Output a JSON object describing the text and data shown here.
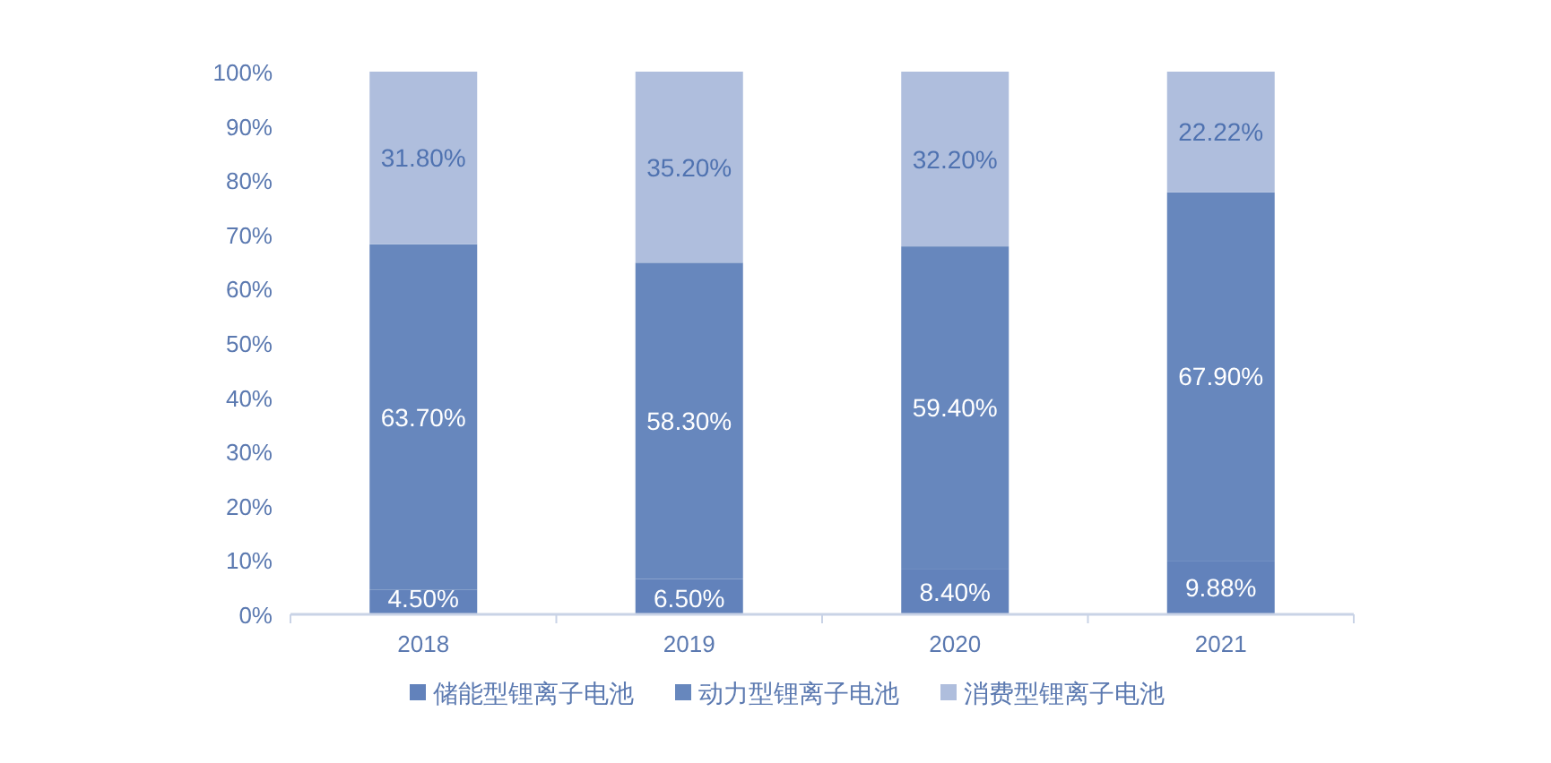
{
  "chart_data": {
    "type": "bar",
    "stacked": true,
    "categories": [
      "2018",
      "2019",
      "2020",
      "2021"
    ],
    "ylim": [
      0,
      100
    ],
    "yticks": [
      {
        "value": 0,
        "label": "0%"
      },
      {
        "value": 10,
        "label": "10%"
      },
      {
        "value": 20,
        "label": "20%"
      },
      {
        "value": 30,
        "label": "30%"
      },
      {
        "value": 40,
        "label": "40%"
      },
      {
        "value": 50,
        "label": "50%"
      },
      {
        "value": 60,
        "label": "60%"
      },
      {
        "value": 70,
        "label": "70%"
      },
      {
        "value": 80,
        "label": "80%"
      },
      {
        "value": 90,
        "label": "90%"
      },
      {
        "value": 100,
        "label": "100%"
      }
    ],
    "series": [
      {
        "name": "储能型锂离子电池",
        "color": "#6282bb",
        "values": [
          4.5,
          6.5,
          8.4,
          9.88
        ],
        "value_labels": [
          "4.50%",
          "6.50%",
          "8.40%",
          "9.88%"
        ]
      },
      {
        "name": "动力型锂离子电池",
        "color": "#6787bd",
        "values": [
          63.7,
          58.3,
          59.4,
          67.9
        ],
        "value_labels": [
          "63.70%",
          "58.30%",
          "59.40%",
          "67.90%"
        ]
      },
      {
        "name": "消费型锂离子电池",
        "color": "#afbedd",
        "values": [
          31.8,
          35.2,
          32.2,
          22.22
        ],
        "value_labels": [
          "31.80%",
          "35.20%",
          "32.20%",
          "22.22%"
        ]
      }
    ],
    "grid": false,
    "legend": "bottom"
  }
}
